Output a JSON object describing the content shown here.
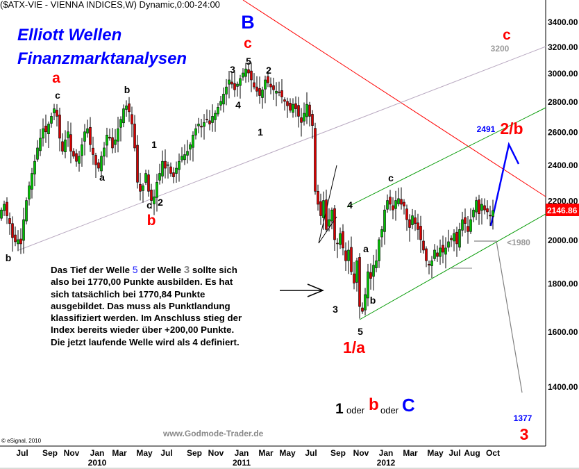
{
  "header": {
    "title": "($ATX-VIE - VIENNA INDICES,W) Dynamic,0:00-24:00"
  },
  "branding": {
    "line1": "Elliott Wellen",
    "line2": "Finanzmarktanalysen",
    "watermark": "www.Godmode-Trader.de",
    "copyright": "© eSignal, 2010"
  },
  "commentary": {
    "l1a": "Das Tief der Welle ",
    "l1n5": "5",
    "l1b": " der Welle ",
    "l1n3": "3",
    "l1c": " sollte sich",
    "l2": "also bei 1770,00 Punkte ausbilden. Es hat",
    "l3": "sich tatsächlich bei 1770,84 Punkte",
    "l4": "ausgebildet. Das muss als Punktlandung",
    "l5": "klassifiziert werden. Im Anschluss stieg der",
    "l6": "Index bereits wieder über +200,00 Punkte.",
    "l7": "Die jetzt laufende Welle wird als 4 definiert."
  },
  "scenario": {
    "one": "1",
    "oder1": "oder",
    "b": "b",
    "oder2": "oder",
    "c": "C"
  },
  "waves": {
    "B": "B",
    "c_top": "c",
    "w5": "5",
    "w3": "3",
    "w2": "2",
    "w4": "4",
    "w1": "1",
    "a_red": "a",
    "c_black1": "c",
    "b_black1": "b",
    "a_black": "a",
    "one_black": "1",
    "c_black2": "c",
    "two_black": "2",
    "b_red": "b",
    "b_black0": "b",
    "w4_new": "4",
    "c_new": "c",
    "a_new": "a",
    "b_new": "b",
    "w3_new": "3",
    "w5_new": "5",
    "one_a": "1/a",
    "c_right": "c",
    "target_3200": "3200",
    "target_2491": "2491",
    "two_b": "2/b",
    "lt1980": "<1980",
    "target_1377": "1377",
    "three_red": "3"
  },
  "colors": {
    "up": "#00c000",
    "down": "#d40000",
    "red_line": "#ff0000",
    "green_line": "#009900",
    "channel_grey": "#b8a8c0",
    "projection": "#0000ff",
    "last_price_bg": "#ff0000"
  },
  "chart_data": {
    "type": "candlestick",
    "title": "($ATX-VIE - VIENNA INDICES,W) Dynamic,0:00-24:00",
    "yscale": "log",
    "ylim": [
      1250,
      3600
    ],
    "yticks": [
      "1400.00",
      "1600.00",
      "1800.00",
      "2000.00",
      "2200.00",
      "2400.00",
      "2600.00",
      "2800.00",
      "3000.00",
      "3200.00",
      "3400.00"
    ],
    "ytick_values": [
      1400,
      1600,
      1800,
      2000,
      2200,
      2400,
      2600,
      2800,
      3000,
      3200,
      3400
    ],
    "last_price": "2146.86",
    "xticks": [
      "Jul",
      "Sep",
      "Nov",
      "Jan",
      "Mar",
      "May",
      "Jul",
      "Sep",
      "Nov",
      "Jan",
      "Mar",
      "May",
      "Jul",
      "Sep",
      "Nov",
      "Jan",
      "Mar",
      "May",
      "Jul",
      "Aug",
      "Oct"
    ],
    "xyears": [
      "2010",
      "2011",
      "2012"
    ],
    "grid": false,
    "weekly_closes": [
      2150,
      2180,
      2120,
      2080,
      2010,
      1990,
      2000,
      1980,
      2100,
      2200,
      2280,
      2350,
      2420,
      2500,
      2560,
      2620,
      2600,
      2650,
      2700,
      2750,
      2700,
      2560,
      2480,
      2550,
      2600,
      2480,
      2450,
      2420,
      2450,
      2520,
      2600,
      2620,
      2520,
      2460,
      2400,
      2380,
      2450,
      2500,
      2580,
      2560,
      2500,
      2550,
      2620,
      2680,
      2750,
      2770,
      2730,
      2650,
      2500,
      2300,
      2250,
      2280,
      2350,
      2250,
      2200,
      2220,
      2300,
      2350,
      2420,
      2380,
      2400,
      2350,
      2330,
      2380,
      2420,
      2450,
      2460,
      2480,
      2520,
      2580,
      2620,
      2650,
      2630,
      2660,
      2680,
      2650,
      2700,
      2720,
      2760,
      2800,
      2850,
      2900,
      2950,
      2920,
      2880,
      2920,
      2960,
      3000,
      3030,
      3000,
      2950,
      2900,
      2870,
      2840,
      2880,
      2950,
      2930,
      2900,
      2880,
      2870,
      2860,
      2830,
      2800,
      2770,
      2740,
      2780,
      2750,
      2700,
      2660,
      2720,
      2780,
      2700,
      2640,
      2250,
      2180,
      2120,
      2200,
      2050,
      2100,
      2150,
      2000,
      1980,
      2030,
      1960,
      1900,
      1950,
      1850,
      1800,
      1900,
      1700,
      1680,
      1750,
      1850,
      1820,
      1880,
      1900,
      2000,
      2050,
      2150,
      2200,
      2180,
      2150,
      2200,
      2210,
      2180,
      2170,
      2100,
      2060,
      2120,
      2080,
      2050,
      2000,
      1950,
      1900,
      1880,
      1900,
      1950,
      1920,
      1960,
      1940,
      1960,
      1990,
      2000,
      2030,
      1980,
      2050,
      2100,
      2080,
      2040,
      2100,
      2150,
      2200,
      2130,
      2180,
      2150,
      2140,
      2120,
      2147
    ]
  }
}
